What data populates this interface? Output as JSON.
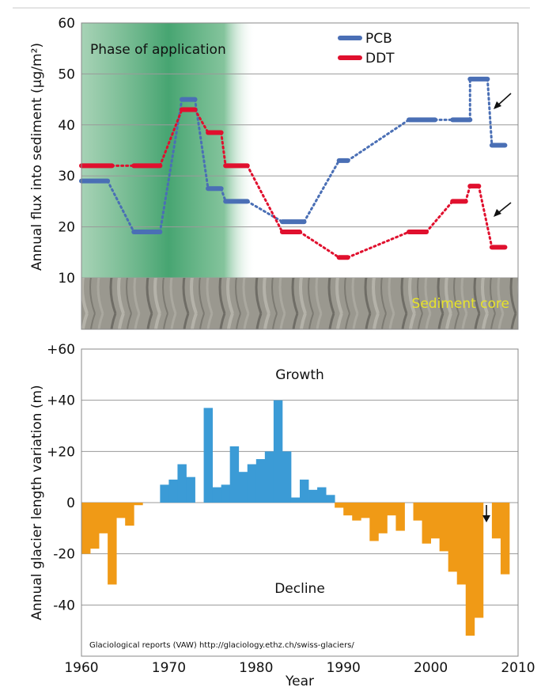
{
  "chart_data": [
    {
      "type": "line",
      "ylabel": "Annual flux into sediment (µg/m²)",
      "ylim": [
        10,
        60
      ],
      "xlim": [
        1960,
        2010
      ],
      "yticks": [
        10,
        20,
        30,
        40,
        50,
        60
      ],
      "grid": true,
      "legend_position": "top-right",
      "annotations": {
        "phase": "Phase of application",
        "core": "Sediment core"
      },
      "series": [
        {
          "name": "PCB",
          "color": "#4a6fb5",
          "segments": [
            {
              "x0": 1960,
              "x1": 1963,
              "y": 29
            },
            {
              "x0": 1966,
              "x1": 1969,
              "y": 19
            },
            {
              "x0": 1971.5,
              "x1": 1973,
              "y": 45
            },
            {
              "x0": 1974.5,
              "x1": 1976,
              "y": 27.5
            },
            {
              "x0": 1976.5,
              "x1": 1979,
              "y": 25
            },
            {
              "x0": 1983,
              "x1": 1985.5,
              "y": 21
            },
            {
              "x0": 1989.5,
              "x1": 1990.5,
              "y": 33
            },
            {
              "x0": 1997.5,
              "x1": 2000.5,
              "y": 41
            },
            {
              "x0": 2002.5,
              "x1": 2004.5,
              "y": 41
            },
            {
              "x0": 2004.5,
              "x1": 2006.5,
              "y": 49
            },
            {
              "x0": 2007,
              "x1": 2008.5,
              "y": 36
            }
          ]
        },
        {
          "name": "DDT",
          "color": "#e0102e",
          "segments": [
            {
              "x0": 1960,
              "x1": 1963.5,
              "y": 32
            },
            {
              "x0": 1966,
              "x1": 1969,
              "y": 32
            },
            {
              "x0": 1971.5,
              "x1": 1973,
              "y": 43
            },
            {
              "x0": 1974.5,
              "x1": 1976,
              "y": 38.5
            },
            {
              "x0": 1976.5,
              "x1": 1979,
              "y": 32
            },
            {
              "x0": 1983,
              "x1": 1985,
              "y": 19
            },
            {
              "x0": 1989.5,
              "x1": 1990.5,
              "y": 14
            },
            {
              "x0": 1997.5,
              "x1": 1999.5,
              "y": 19
            },
            {
              "x0": 2002.5,
              "x1": 2004,
              "y": 25
            },
            {
              "x0": 2004.5,
              "x1": 2005.5,
              "y": 28
            },
            {
              "x0": 2007,
              "x1": 2008.5,
              "y": 16
            }
          ]
        }
      ]
    },
    {
      "type": "bar",
      "ylabel": "Annual glacier length variation (m)",
      "xlabel": "Year",
      "ylim": [
        -60,
        60
      ],
      "xlim": [
        1960,
        2010
      ],
      "yticks": [
        "+60",
        "+40",
        "+20",
        "0",
        "-20",
        "-40"
      ],
      "xticks": [
        "1960",
        "1970",
        "1980",
        "1990",
        "2000",
        "2010"
      ],
      "grid": true,
      "annotations": {
        "growth": "Growth",
        "decline": "Decline",
        "source": "Glaciological reports (VAW) http://glaciology.ethz.ch/swiss-glaciers/"
      },
      "colors": {
        "positive": "#3b9bd6",
        "negative": "#f09a16"
      },
      "years": [
        1960,
        1961,
        1962,
        1963,
        1964,
        1965,
        1966,
        1967,
        1968,
        1969,
        1970,
        1971,
        1972,
        1973,
        1974,
        1975,
        1976,
        1977,
        1978,
        1979,
        1980,
        1981,
        1982,
        1983,
        1984,
        1985,
        1986,
        1987,
        1988,
        1989,
        1990,
        1991,
        1992,
        1993,
        1994,
        1995,
        1996,
        1997,
        1998,
        1999,
        2000,
        2001,
        2002,
        2003,
        2004,
        2005,
        2006,
        2007,
        2008,
        2009
      ],
      "values": [
        -20,
        -18,
        -12,
        -32,
        -6,
        -9,
        -1,
        0,
        0,
        7,
        9,
        15,
        10,
        0,
        37,
        6,
        7,
        22,
        12,
        15,
        17,
        20,
        40,
        20,
        2,
        9,
        5,
        6,
        3,
        -2,
        -5,
        -7,
        -6,
        -15,
        -12,
        -5,
        -11,
        0,
        -7,
        -16,
        -14,
        -19,
        -27,
        -32,
        -52,
        -45,
        0,
        -14,
        -28,
        0
      ]
    }
  ]
}
